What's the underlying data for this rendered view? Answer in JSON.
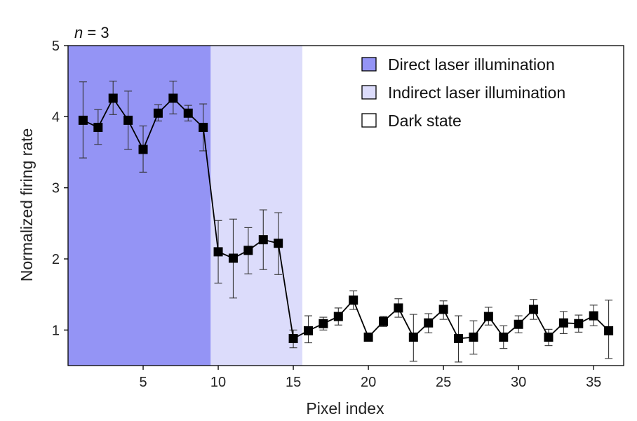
{
  "chart_data": {
    "type": "line",
    "annotation": {
      "italic": "n",
      "rest": " = 3"
    },
    "xlabel": "Pixel index",
    "ylabel": "Normalized firing rate",
    "xlim": [
      0,
      37
    ],
    "ylim": [
      0.5,
      5
    ],
    "xticks": [
      5,
      10,
      15,
      20,
      25,
      30,
      35
    ],
    "yticks": [
      1,
      2,
      3,
      4,
      5
    ],
    "grid": false,
    "legend_position": "top-right",
    "regions": [
      {
        "label": "Direct laser illumination",
        "x_start": 0,
        "x_end": 9.5,
        "color": "#9494f5"
      },
      {
        "label": "Indirect laser illumination",
        "x_start": 9.5,
        "x_end": 15.6,
        "color": "#dcdcfb"
      },
      {
        "label": "Dark state",
        "x_start": 15.6,
        "x_end": 37,
        "color": "#ffffff"
      }
    ],
    "series": [
      {
        "x": [
          1,
          2,
          3,
          4,
          5,
          6,
          7,
          8,
          9,
          10,
          11,
          12,
          13,
          14,
          15,
          16,
          17,
          18,
          19,
          20,
          21,
          22,
          23,
          24,
          25,
          26,
          27,
          28,
          29,
          30,
          31,
          32,
          33,
          34,
          35,
          36
        ],
        "y": [
          3.95,
          3.85,
          4.26,
          3.95,
          3.54,
          4.05,
          4.26,
          4.05,
          3.85,
          2.1,
          2.01,
          2.12,
          2.27,
          2.22,
          0.88,
          0.99,
          1.09,
          1.19,
          1.42,
          0.9,
          1.12,
          1.31,
          0.9,
          1.1,
          1.29,
          0.88,
          0.9,
          1.19,
          0.9,
          1.08,
          1.29,
          0.9,
          1.1,
          1.09,
          1.2,
          0.99
        ],
        "err_low": [
          3.42,
          3.61,
          4.03,
          3.54,
          3.22,
          3.94,
          4.04,
          3.94,
          3.52,
          1.66,
          1.45,
          1.79,
          1.85,
          1.78,
          0.75,
          0.82,
          1.0,
          1.07,
          1.29,
          0.9,
          1.05,
          1.18,
          0.56,
          0.96,
          1.15,
          0.55,
          0.66,
          1.07,
          0.74,
          0.96,
          1.15,
          0.78,
          0.95,
          0.97,
          1.06,
          0.6
        ],
        "err_high": [
          4.49,
          4.1,
          4.5,
          4.36,
          3.87,
          4.17,
          4.5,
          4.16,
          4.18,
          2.54,
          2.56,
          2.44,
          2.69,
          2.65,
          1.0,
          1.2,
          1.18,
          1.31,
          1.55,
          0.9,
          1.19,
          1.44,
          1.22,
          1.23,
          1.41,
          1.2,
          1.13,
          1.32,
          1.06,
          1.2,
          1.43,
          1.01,
          1.26,
          1.21,
          1.35,
          1.42
        ],
        "color": "#000000",
        "marker": "square"
      }
    ]
  }
}
